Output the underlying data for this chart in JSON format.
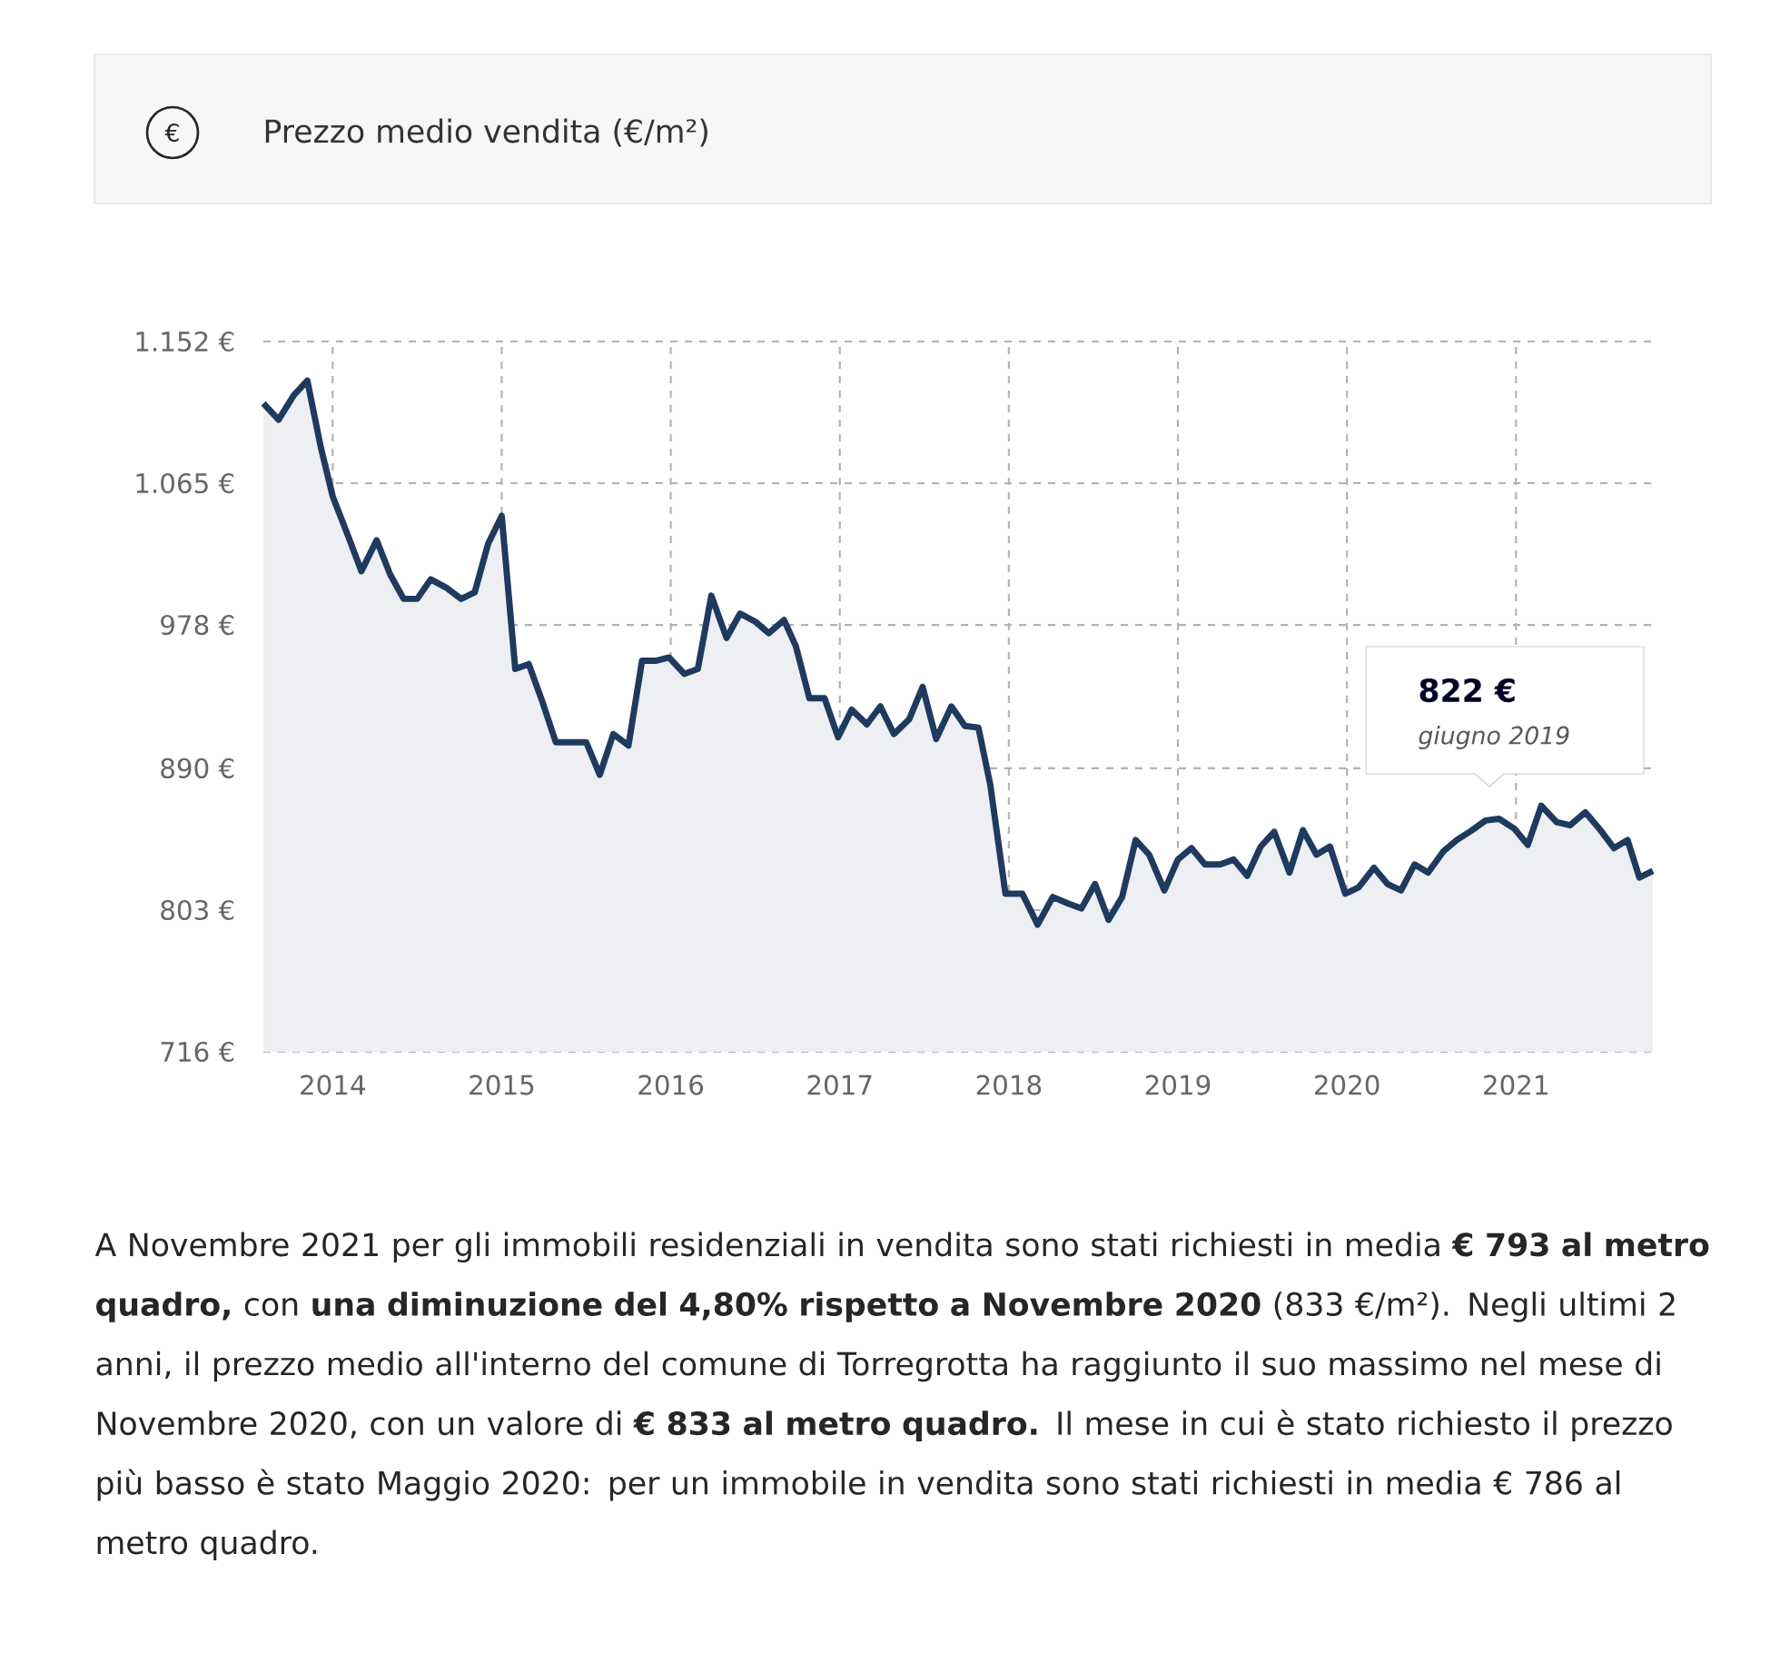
{
  "chart_data": {
    "type": "area",
    "title": "Prezzo medio vendita (€/m²)",
    "series": [
      {
        "color": "#1f3a5f",
        "x": [
          2013.59,
          2013.68,
          2013.77,
          2013.85,
          2013.93,
          2014.0,
          2014.09,
          2014.17,
          2014.26,
          2014.34,
          2014.42,
          2014.5,
          2014.58,
          2014.67,
          2014.76,
          2014.84,
          2014.92,
          2015.0,
          2015.08,
          2015.16,
          2015.24,
          2015.32,
          2015.41,
          2015.5,
          2015.58,
          2015.66,
          2015.75,
          2015.83,
          2015.91,
          2015.99,
          2016.08,
          2016.16,
          2016.24,
          2016.33,
          2016.41,
          2016.5,
          2016.58,
          2016.67,
          2016.74,
          2016.82,
          2016.91,
          2016.99,
          2017.07,
          2017.16,
          2017.24,
          2017.32,
          2017.41,
          2017.49,
          2017.57,
          2017.66,
          2017.74,
          2017.82,
          2017.89,
          2017.98,
          2018.08,
          2018.17,
          2018.26,
          2018.35,
          2018.43,
          2018.51,
          2018.59,
          2018.67,
          2018.75,
          2018.83,
          2018.92,
          2019.0,
          2019.08,
          2019.16,
          2019.25,
          2019.33,
          2019.41,
          2019.49,
          2019.57,
          2019.66,
          2019.74,
          2019.82,
          2019.9,
          2019.99,
          2020.07,
          2020.16,
          2020.24,
          2020.32,
          2020.4,
          2020.48,
          2020.57,
          2020.65,
          2020.74,
          2020.82,
          2020.9,
          2020.99,
          2021.07,
          2021.15,
          2021.24,
          2021.32,
          2021.41,
          2021.5,
          2021.58,
          2021.66,
          2021.73,
          2021.81
        ],
        "values": [
          1114,
          1104,
          1119,
          1128,
          1087,
          1057,
          1033,
          1011,
          1030,
          1009,
          994,
          994,
          1006,
          1001,
          994,
          998,
          1028,
          1045,
          951,
          954,
          931,
          906,
          906,
          906,
          886,
          911,
          904,
          956,
          956,
          958,
          948,
          951,
          996,
          970,
          985,
          980,
          973,
          981,
          965,
          933,
          933,
          909,
          926,
          917,
          928,
          911,
          920,
          940,
          908,
          928,
          916,
          915,
          880,
          813,
          813,
          794,
          811,
          807,
          804,
          819,
          797,
          811,
          846,
          837,
          815,
          834,
          841,
          831,
          831,
          834,
          824,
          842,
          851,
          826,
          852,
          837,
          842,
          813,
          817,
          829,
          819,
          815,
          831,
          826,
          839,
          846,
          852,
          858,
          859,
          853,
          843,
          867,
          857,
          855,
          863,
          852,
          841,
          846,
          823,
          827
        ]
      }
    ],
    "xlim": [
      2013.59,
      2021.81
    ],
    "xticks": [
      2014,
      2015,
      2016,
      2017,
      2018,
      2019,
      2020,
      2021
    ],
    "ylim": [
      716,
      1152
    ],
    "yticks": [
      {
        "value": 716,
        "label": "716 €"
      },
      {
        "value": 803,
        "label": "803 €"
      },
      {
        "value": 890,
        "label": "890 €"
      },
      {
        "value": 978,
        "label": "978 €"
      },
      {
        "value": 1065,
        "label": "1.065 €"
      },
      {
        "value": 1152,
        "label": "1.152 €"
      }
    ],
    "grid": true,
    "annotations": [
      "€",
      "**822 €**",
      "*giugno 2019*",
      "A Novembre 2021 per gli immobili residenziali in vendita sono stati richiesti in media **€ 793 al metro quadro,** con **una diminuzione del 4,80% rispetto a Novembre 2020** (833 €/m²). Negli ultimi 2 anni, il prezzo medio all'interno del comune di Torregrotta ha raggiunto il suo massimo nel mese di Novembre 2020, con un valore di **€ 833 al metro quadro.** Il mese in cui è stato richiesto il prezzo più basso è stato Maggio 2020: per un immobile in vendita sono stati richiesti in media € 786 al metro quadro."
    ]
  }
}
